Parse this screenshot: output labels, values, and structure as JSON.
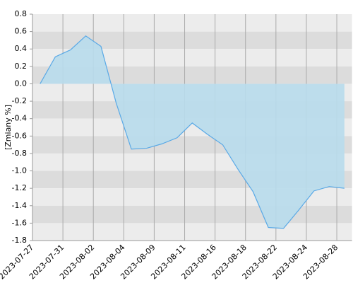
{
  "chart_data": {
    "type": "area",
    "y_label": "[Zmiany %]",
    "x": [
      0.5,
      1.5,
      2.5,
      3.5,
      4.5,
      5.5,
      6.5,
      7.5,
      8.5,
      9.5,
      10.5,
      11.5,
      12.5,
      13.5,
      14.5,
      15.5,
      16.5,
      17.5,
      18.5,
      19.5,
      20.5
    ],
    "values": [
      0.0,
      0.31,
      0.39,
      0.55,
      0.43,
      -0.22,
      -0.75,
      -0.74,
      -0.69,
      -0.62,
      -0.45,
      -0.58,
      -0.7,
      -0.98,
      -1.24,
      -1.65,
      -1.66,
      -1.45,
      -1.23,
      -1.18,
      -1.2
    ],
    "color": "#5aa9e6",
    "fill": "#b8dcec",
    "xlim": [
      0,
      21
    ],
    "xticks": [
      {
        "value": 0,
        "label": "2023-07-27"
      },
      {
        "value": 2,
        "label": "2023-07-31"
      },
      {
        "value": 4,
        "label": "2023-08-02"
      },
      {
        "value": 6,
        "label": "2023-08-04"
      },
      {
        "value": 8,
        "label": "2023-08-09"
      },
      {
        "value": 10,
        "label": "2023-08-11"
      },
      {
        "value": 12,
        "label": "2023-08-16"
      },
      {
        "value": 14,
        "label": "2023-08-18"
      },
      {
        "value": 16,
        "label": "2023-08-22"
      },
      {
        "value": 18,
        "label": "2023-08-24"
      },
      {
        "value": 20,
        "label": "2023-08-28"
      }
    ],
    "ylim": [
      -1.8,
      0.8
    ],
    "yticks": [
      0.8,
      0.6,
      0.4,
      0.2,
      {
        "value": 0,
        "label": "0.0"
      },
      -0.2,
      -0.4,
      -0.6,
      -0.8,
      {
        "value": -1,
        "label": "-1.0"
      },
      -1.2,
      -1.4,
      -1.6,
      -1.8
    ],
    "grid": true
  }
}
